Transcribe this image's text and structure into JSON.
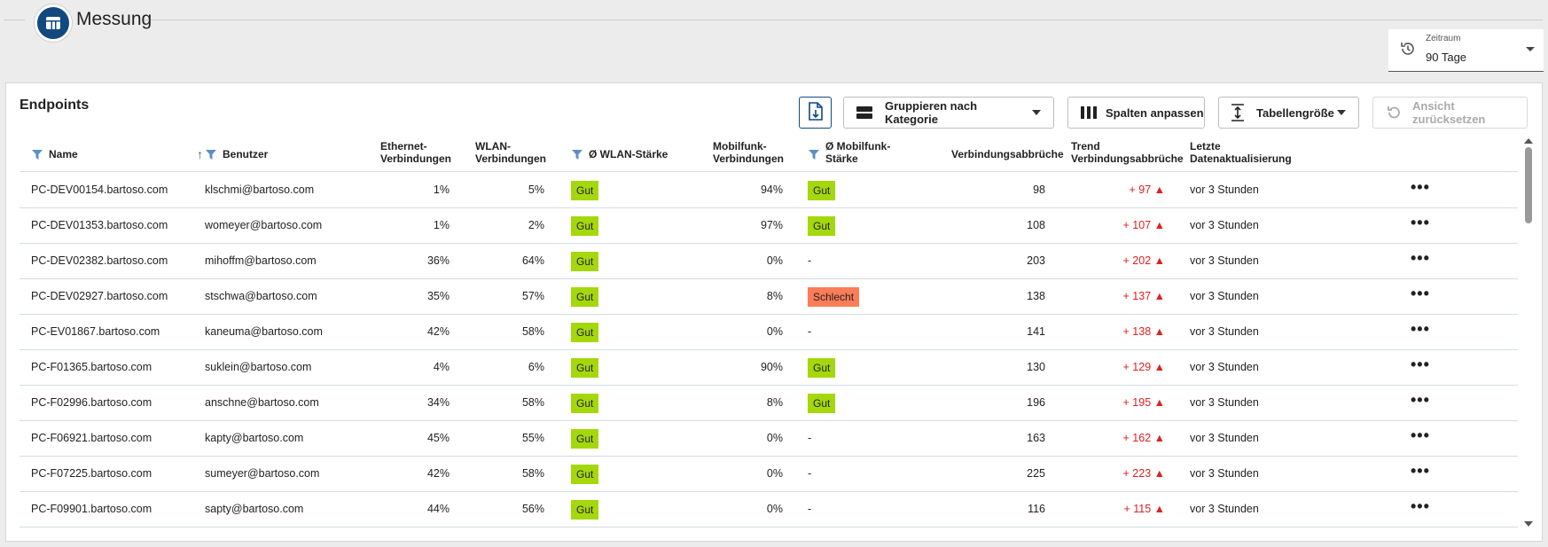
{
  "header": {
    "title": "Messung"
  },
  "zeitraum": {
    "label": "Zeitraum",
    "value": "90 Tage"
  },
  "card": {
    "title": "Endpoints",
    "toolbar": {
      "group_label": "Gruppieren nach Kategorie",
      "columns_label": "Spalten anpassen",
      "size_label": "Tabellengröße",
      "reset_label": "Ansicht zurücksetzen"
    }
  },
  "columns": {
    "name": "Name",
    "benutzer": "Benutzer",
    "ethernet_1": "Ethernet-",
    "ethernet_2": "Verbindungen",
    "wlan_1": "WLAN-",
    "wlan_2": "Verbindungen",
    "wlan_staerke": "Ø WLAN-Stärke",
    "mobil_1": "Mobilfunk-",
    "mobil_2": "Verbindungen",
    "mobil_staerke_1": "Ø Mobilfunk-",
    "mobil_staerke_2": "Stärke",
    "abbrueche": "Verbindungsabbrüche",
    "trend_1": "Trend",
    "trend_2": "Verbindungsabbrüche",
    "letzte_1": "Letzte",
    "letzte_2": "Datenaktualisierung"
  },
  "rows": [
    {
      "name": "PC-DEV00154.bartoso.com",
      "user": "klschmi@bartoso.com",
      "eth": "1%",
      "wlan": "5%",
      "wlan_q": "Gut",
      "mobil": "94%",
      "mobil_q": "Gut",
      "abbr": "98",
      "trend": "+ 97 ▲",
      "updated": "vor 3 Stunden"
    },
    {
      "name": "PC-DEV01353.bartoso.com",
      "user": "womeyer@bartoso.com",
      "eth": "1%",
      "wlan": "2%",
      "wlan_q": "Gut",
      "mobil": "97%",
      "mobil_q": "Gut",
      "abbr": "108",
      "trend": "+ 107 ▲",
      "updated": "vor 3 Stunden"
    },
    {
      "name": "PC-DEV02382.bartoso.com",
      "user": "mihoffm@bartoso.com",
      "eth": "36%",
      "wlan": "64%",
      "wlan_q": "Gut",
      "mobil": "0%",
      "mobil_q": "-",
      "abbr": "203",
      "trend": "+ 202 ▲",
      "updated": "vor 3 Stunden"
    },
    {
      "name": "PC-DEV02927.bartoso.com",
      "user": "stschwa@bartoso.com",
      "eth": "35%",
      "wlan": "57%",
      "wlan_q": "Gut",
      "mobil": "8%",
      "mobil_q": "Schlecht",
      "abbr": "138",
      "trend": "+ 137 ▲",
      "updated": "vor 3 Stunden"
    },
    {
      "name": "PC-EV01867.bartoso.com",
      "user": "kaneuma@bartoso.com",
      "eth": "42%",
      "wlan": "58%",
      "wlan_q": "Gut",
      "mobil": "0%",
      "mobil_q": "-",
      "abbr": "141",
      "trend": "+ 138 ▲",
      "updated": "vor 3 Stunden"
    },
    {
      "name": "PC-F01365.bartoso.com",
      "user": "suklein@bartoso.com",
      "eth": "4%",
      "wlan": "6%",
      "wlan_q": "Gut",
      "mobil": "90%",
      "mobil_q": "Gut",
      "abbr": "130",
      "trend": "+ 129 ▲",
      "updated": "vor 3 Stunden"
    },
    {
      "name": "PC-F02996.bartoso.com",
      "user": "anschne@bartoso.com",
      "eth": "34%",
      "wlan": "58%",
      "wlan_q": "Gut",
      "mobil": "8%",
      "mobil_q": "Gut",
      "abbr": "196",
      "trend": "+ 195 ▲",
      "updated": "vor 3 Stunden"
    },
    {
      "name": "PC-F06921.bartoso.com",
      "user": "kapty@bartoso.com",
      "eth": "45%",
      "wlan": "55%",
      "wlan_q": "Gut",
      "mobil": "0%",
      "mobil_q": "-",
      "abbr": "163",
      "trend": "+ 162 ▲",
      "updated": "vor 3 Stunden"
    },
    {
      "name": "PC-F07225.bartoso.com",
      "user": "sumeyer@bartoso.com",
      "eth": "42%",
      "wlan": "58%",
      "wlan_q": "Gut",
      "mobil": "0%",
      "mobil_q": "-",
      "abbr": "225",
      "trend": "+ 223 ▲",
      "updated": "vor 3 Stunden"
    },
    {
      "name": "PC-F09901.bartoso.com",
      "user": "sapty@bartoso.com",
      "eth": "44%",
      "wlan": "56%",
      "wlan_q": "Gut",
      "mobil": "0%",
      "mobil_q": "-",
      "abbr": "116",
      "trend": "+ 115 ▲",
      "updated": "vor 3 Stunden"
    }
  ],
  "icons": {
    "header": "table-icon",
    "zeitraum": "history-icon",
    "export": "file-download-icon",
    "group": "group-rows-icon",
    "columns": "columns-icon",
    "size": "row-height-icon",
    "reset": "undo-icon",
    "filter": "filter-icon",
    "sort": "arrow-up-icon",
    "more": "more-horizontal-icon"
  },
  "colors": {
    "brand": "#11497f",
    "good": "#a5d80c",
    "bad": "#fb7d58",
    "trend": "#e02020"
  }
}
